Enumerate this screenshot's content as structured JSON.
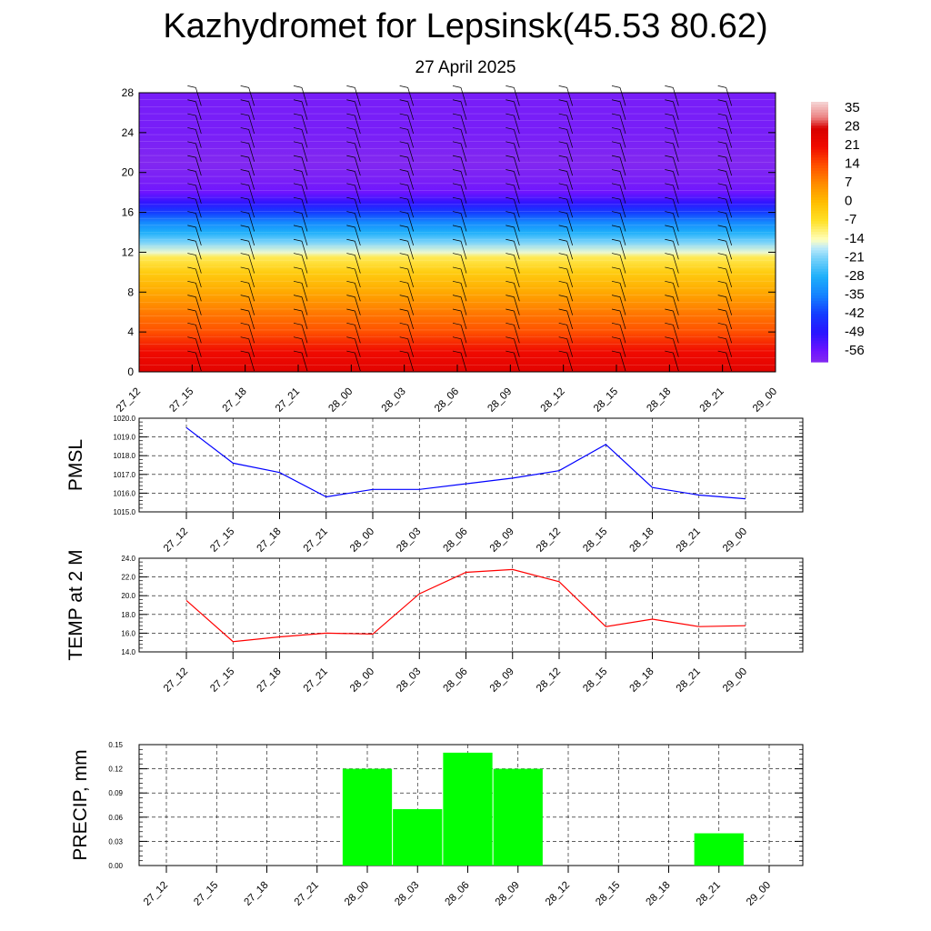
{
  "title": "Kazhydromet for Lepsinsk(45.53 80.62)",
  "subtitle": "27 April 2025",
  "time_labels": [
    "27_12",
    "27_15",
    "27_18",
    "27_21",
    "28_00",
    "28_03",
    "28_06",
    "28_09",
    "28_12",
    "28_15",
    "28_18",
    "28_21",
    "29_00"
  ],
  "colors": {
    "pmsl_line": "#0000ff",
    "temp_line": "#ff0000",
    "precip_bar": "#00ff00"
  },
  "chart_data": [
    {
      "type": "heatmap",
      "title": "",
      "x": [
        "27_12",
        "27_15",
        "27_18",
        "27_21",
        "28_00",
        "28_03",
        "28_06",
        "28_09",
        "28_12",
        "28_15",
        "28_18",
        "28_21",
        "29_00"
      ],
      "yticks": [
        0,
        4,
        8,
        12,
        16,
        20,
        24,
        28
      ],
      "ylim": [
        0,
        28
      ],
      "colorbar_labels": [
        "35",
        "28",
        "21",
        "14",
        "7",
        "0",
        "-7",
        "-14",
        "-21",
        "-28",
        "-35",
        "-42",
        "-49",
        "-56"
      ],
      "colorbar_range": [
        -60,
        38
      ],
      "profile": [
        {
          "level": 0,
          "value": 25
        },
        {
          "level": 2,
          "value": 21
        },
        {
          "level": 4,
          "value": 14
        },
        {
          "level": 6,
          "value": 9
        },
        {
          "level": 8,
          "value": 3
        },
        {
          "level": 10,
          "value": -3
        },
        {
          "level": 11.5,
          "value": -9
        },
        {
          "level": 12,
          "value": -15
        },
        {
          "level": 13,
          "value": -21
        },
        {
          "level": 14,
          "value": -28
        },
        {
          "level": 15,
          "value": -34
        },
        {
          "level": 16,
          "value": -42
        },
        {
          "level": 17,
          "value": -50
        },
        {
          "level": 18,
          "value": -56
        },
        {
          "level": 19,
          "value": -58
        },
        {
          "level": 21,
          "value": -60
        },
        {
          "level": 24,
          "value": -58
        },
        {
          "level": 28,
          "value": -58
        }
      ],
      "wind_barbs": true
    },
    {
      "type": "line",
      "ylabel": "PMSL",
      "x": [
        "27_12",
        "27_15",
        "27_18",
        "27_21",
        "28_00",
        "28_03",
        "28_06",
        "28_09",
        "28_12",
        "28_15",
        "28_18",
        "28_21",
        "29_00"
      ],
      "yticks": [
        "1015.0",
        "1016.0",
        "1017.0",
        "1018.0",
        "1019.0",
        "1020.0"
      ],
      "ylim": [
        1015,
        1020
      ],
      "series": [
        {
          "values": [
            1019.5,
            1017.6,
            1017.1,
            1015.8,
            1016.2,
            1016.2,
            1016.5,
            1016.8,
            1017.2,
            1018.6,
            1016.3,
            1015.9,
            1015.7
          ]
        }
      ],
      "grid": true
    },
    {
      "type": "line",
      "ylabel": "TEMP at 2 M",
      "x": [
        "27_12",
        "27_15",
        "27_18",
        "27_21",
        "28_00",
        "28_03",
        "28_06",
        "28_09",
        "28_12",
        "28_15",
        "28_18",
        "28_21",
        "29_00"
      ],
      "yticks": [
        "14.0",
        "16.0",
        "18.0",
        "20.0",
        "22.0",
        "24.0"
      ],
      "ylim": [
        14,
        24
      ],
      "series": [
        {
          "values": [
            19.5,
            15.1,
            15.6,
            16.0,
            15.9,
            20.2,
            22.5,
            22.8,
            21.5,
            16.7,
            17.5,
            16.7,
            16.8
          ]
        }
      ],
      "grid": true
    },
    {
      "type": "bar",
      "ylabel": "PRECIP, mm",
      "categories": [
        "27_12",
        "27_15",
        "27_18",
        "27_21",
        "28_00",
        "28_03",
        "28_06",
        "28_09",
        "28_12",
        "28_15",
        "28_18",
        "28_21",
        "29_00"
      ],
      "yticks": [
        "0.00",
        "0.03",
        "0.06",
        "0.09",
        "0.12",
        "0.15"
      ],
      "ylim": [
        0,
        0.15
      ],
      "values": [
        0,
        0,
        0,
        0,
        0.12,
        0.07,
        0.14,
        0.12,
        0,
        0,
        0,
        0.04,
        0
      ],
      "grid": true
    }
  ]
}
